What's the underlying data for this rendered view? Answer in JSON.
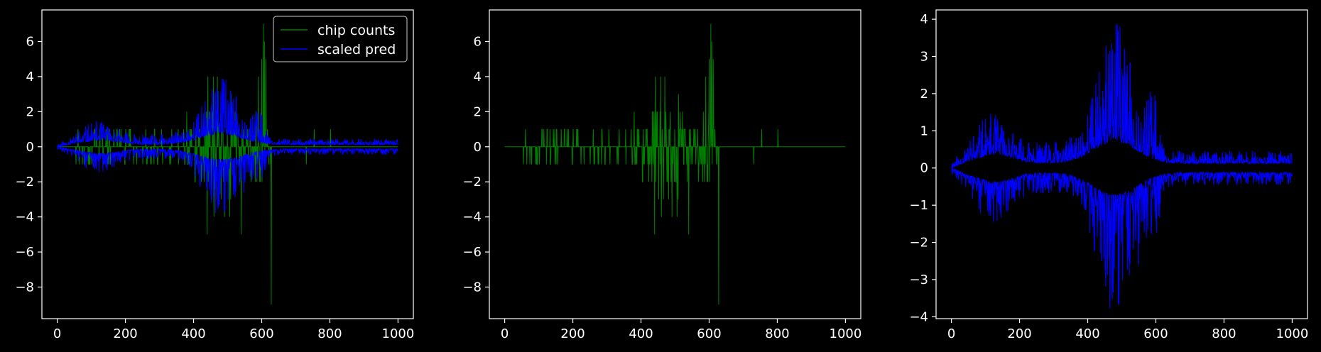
{
  "chart_data": [
    {
      "type": "line",
      "title": "",
      "xlabel": "",
      "ylabel": "",
      "xlim": [
        -45,
        1045
      ],
      "ylim": [
        -9.8,
        7.8
      ],
      "xticks": [
        0,
        200,
        400,
        600,
        800,
        1000
      ],
      "yticks": [
        -8,
        -6,
        -4,
        -2,
        0,
        2,
        4,
        6
      ],
      "grid": false,
      "legend": {
        "position": "top-right"
      },
      "series": [
        {
          "name": "chip counts",
          "color": "#008000",
          "kind": "counts"
        },
        {
          "name": "scaled pred",
          "color": "#0000ff",
          "kind": "band"
        }
      ]
    },
    {
      "type": "line",
      "title": "",
      "xlabel": "",
      "ylabel": "",
      "xlim": [
        -45,
        1045
      ],
      "ylim": [
        -9.8,
        7.8
      ],
      "xticks": [
        0,
        200,
        400,
        600,
        800,
        1000
      ],
      "yticks": [
        -8,
        -6,
        -4,
        -2,
        0,
        2,
        4,
        6
      ],
      "grid": false,
      "series": [
        {
          "name": "",
          "color": "#008000",
          "kind": "counts"
        }
      ]
    },
    {
      "type": "line",
      "title": "",
      "xlabel": "",
      "ylabel": "",
      "xlim": [
        -45,
        1045
      ],
      "ylim": [
        -4.05,
        4.25
      ],
      "xticks": [
        0,
        200,
        400,
        600,
        800,
        1000
      ],
      "yticks": [
        -4,
        -3,
        -2,
        -1,
        0,
        1,
        2,
        3,
        4
      ],
      "grid": false,
      "series": [
        {
          "name": "",
          "color": "#0000ff",
          "kind": "band"
        }
      ]
    }
  ]
}
